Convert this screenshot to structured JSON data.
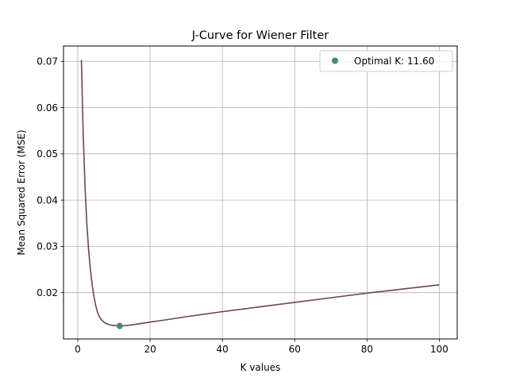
{
  "chart_data": {
    "type": "line",
    "title": "J-Curve for Wiener Filter",
    "xlabel": "K values",
    "ylabel": "Mean Squared Error (MSE)",
    "xlim": [
      -3.95,
      104.95
    ],
    "ylim": [
      0.01,
      0.0733
    ],
    "xticks": [
      0,
      20,
      40,
      60,
      80,
      100
    ],
    "yticks": [
      0.02,
      0.03,
      0.04,
      0.05,
      0.06,
      0.07
    ],
    "ytick_labels": [
      "0.02",
      "0.03",
      "0.04",
      "0.05",
      "0.06",
      "0.07"
    ],
    "grid": true,
    "legend_position": "top-right",
    "series": [
      {
        "color": "#6b4552",
        "x": [
          1,
          1.5,
          2,
          2.5,
          3,
          3.5,
          4,
          4.5,
          5,
          5.5,
          6,
          6.5,
          7,
          7.5,
          8,
          8.5,
          9,
          9.5,
          10,
          10.5,
          11,
          11.6,
          12.5,
          14,
          16,
          18,
          20,
          25,
          30,
          40,
          50,
          60,
          70,
          80,
          90,
          100
        ],
        "y": [
          0.0703,
          0.0542,
          0.043,
          0.035,
          0.0292,
          0.0249,
          0.0216,
          0.019,
          0.0171,
          0.0157,
          0.0148,
          0.0142,
          0.0138,
          0.0135,
          0.0133,
          0.01315,
          0.013,
          0.01295,
          0.0129,
          0.01286,
          0.01282,
          0.0128,
          0.01283,
          0.01295,
          0.01316,
          0.0134,
          0.01364,
          0.0142,
          0.0148,
          0.0159,
          0.0169,
          0.0179,
          0.0189,
          0.0199,
          0.0208,
          0.0217
        ]
      },
      {
        "name": "Optimal K: 11.60",
        "type": "scatter",
        "color": "#4a8a6a",
        "x": [
          11.6
        ],
        "y": [
          0.0128
        ]
      }
    ]
  }
}
